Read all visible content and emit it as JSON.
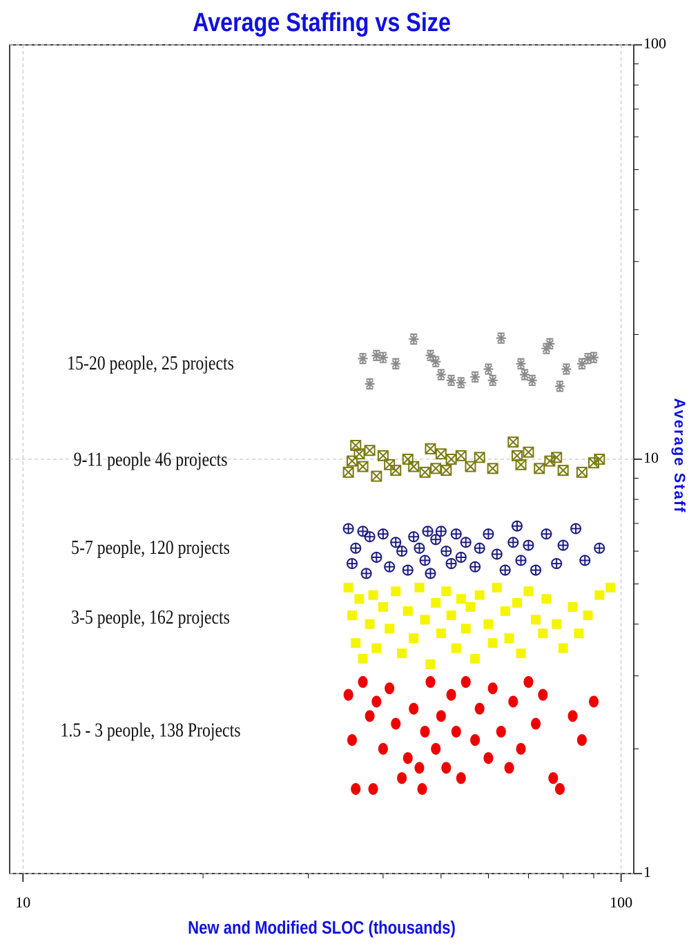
{
  "chart_data": {
    "type": "scatter",
    "title": "Average Staffing vs Size",
    "x_label": "New and Modified SLOC (thousands)",
    "y_label": "Average Staff",
    "x_log": true,
    "y_log": true,
    "grid": true,
    "y_axis_side": "right",
    "xlim": [
      9.5,
      105
    ],
    "ylim": [
      1,
      100
    ],
    "xticks": [
      10,
      100
    ],
    "yticks": [
      1,
      10,
      100
    ],
    "xminorticks": [
      20,
      30,
      40,
      50,
      60,
      70,
      80,
      90
    ],
    "yminorticks": [
      2,
      3,
      4,
      5,
      6,
      7,
      8,
      9,
      20,
      30,
      40,
      50,
      60,
      70,
      80,
      90
    ],
    "series": [
      {
        "name": "15-20 people, 25 projects",
        "color": "#8c8c8c",
        "marker": "asterisk",
        "x": [
          37,
          38,
          39,
          40,
          42,
          45,
          48,
          49,
          50,
          52,
          54,
          57,
          60,
          61,
          63,
          68,
          69,
          71,
          75,
          76,
          79,
          81,
          86,
          88,
          90
        ],
        "values": [
          17.5,
          15.2,
          17.8,
          17.6,
          17,
          19.5,
          17.8,
          17.2,
          16,
          15.5,
          15.3,
          15.8,
          16.5,
          15.5,
          19.6,
          17,
          16,
          15.5,
          18.5,
          19,
          15,
          16.5,
          17,
          17.5,
          17.6
        ]
      },
      {
        "name": "9-11 people 46 projects",
        "color": "#7a7a10",
        "marker": "boxx",
        "x": [
          35,
          35.5,
          36,
          36.5,
          37,
          38,
          39,
          40,
          41,
          42,
          44,
          45,
          47,
          48,
          49,
          50,
          51,
          52,
          54,
          56,
          58,
          61,
          66,
          67,
          68,
          70,
          73,
          76,
          78,
          80,
          86,
          90,
          92
        ],
        "values": [
          9.3,
          9.9,
          10.8,
          10.3,
          9.6,
          10.5,
          9.1,
          10.2,
          9.7,
          9.4,
          10.0,
          9.6,
          9.3,
          10.6,
          9.5,
          10.3,
          9.4,
          10.0,
          10.2,
          9.6,
          10.1,
          9.5,
          11.0,
          10.2,
          9.7,
          10.4,
          9.5,
          9.9,
          10.1,
          9.4,
          9.3,
          9.8,
          10.0
        ]
      },
      {
        "name": "5-7 people, 120 projects",
        "color": "#1c1c80",
        "marker": "circleplus",
        "x": [
          35,
          35.5,
          36,
          37,
          37.5,
          38,
          39,
          40,
          41,
          42,
          43,
          44,
          45,
          46,
          47,
          47.5,
          48,
          49,
          50,
          51,
          52,
          53,
          54,
          55,
          57,
          58,
          60,
          62,
          64,
          66,
          67,
          68,
          70,
          72,
          75,
          78,
          80,
          84,
          87,
          92
        ],
        "values": [
          6.8,
          5.6,
          6.1,
          6.7,
          5.3,
          6.5,
          5.8,
          6.6,
          5.5,
          6.3,
          6.0,
          5.4,
          6.5,
          6.1,
          5.7,
          6.7,
          5.3,
          6.4,
          6.7,
          6.0,
          5.6,
          6.6,
          5.8,
          6.3,
          5.5,
          6.1,
          6.6,
          5.9,
          5.4,
          6.3,
          6.9,
          5.7,
          6.2,
          5.4,
          6.6,
          5.6,
          6.2,
          6.8,
          5.7,
          6.1
        ]
      },
      {
        "name": "3-5 people, 162 projects",
        "color": "#f5f500",
        "marker": "square",
        "x": [
          35,
          35.5,
          36,
          36.5,
          37,
          38,
          38.5,
          39,
          40,
          41,
          42,
          43,
          44,
          45,
          46,
          47,
          48,
          49,
          50,
          51,
          52,
          53,
          54,
          55,
          56,
          57,
          58,
          60,
          61,
          62,
          64,
          65,
          67,
          68,
          70,
          72,
          74,
          75,
          78,
          80,
          83,
          85,
          88,
          92,
          96
        ],
        "values": [
          4.9,
          4.2,
          3.6,
          4.6,
          3.3,
          4.0,
          4.7,
          3.5,
          4.4,
          3.9,
          4.8,
          3.4,
          4.3,
          3.7,
          4.9,
          4.1,
          3.2,
          4.5,
          3.8,
          4.8,
          4.2,
          3.5,
          4.6,
          3.9,
          4.4,
          3.3,
          4.7,
          4.0,
          3.6,
          4.9,
          4.3,
          3.7,
          4.5,
          3.4,
          4.8,
          4.1,
          3.8,
          4.6,
          4.0,
          3.5,
          4.4,
          3.8,
          4.2,
          4.7,
          4.9
        ]
      },
      {
        "name": "1.5 - 3 people, 138 Projects",
        "color": "#ee0000",
        "marker": "ellipse",
        "x": [
          35,
          35.5,
          36,
          37,
          38,
          38.5,
          39,
          40,
          41,
          42,
          43,
          44,
          45,
          46,
          46.5,
          47,
          48,
          49,
          50,
          51,
          52,
          53,
          54,
          55,
          57,
          58,
          60,
          61,
          63,
          65,
          66,
          68,
          70,
          72,
          74,
          77,
          79,
          83,
          86,
          90
        ],
        "values": [
          2.7,
          2.1,
          1.6,
          2.9,
          2.4,
          1.6,
          2.6,
          2.0,
          2.8,
          2.3,
          1.7,
          1.9,
          2.5,
          1.8,
          1.6,
          2.2,
          2.9,
          2.0,
          2.4,
          1.8,
          2.7,
          2.2,
          1.7,
          2.9,
          2.1,
          2.5,
          1.9,
          2.8,
          2.2,
          1.8,
          2.6,
          2.0,
          2.9,
          2.3,
          2.7,
          1.7,
          1.6,
          2.4,
          2.1,
          2.6
        ]
      }
    ]
  }
}
